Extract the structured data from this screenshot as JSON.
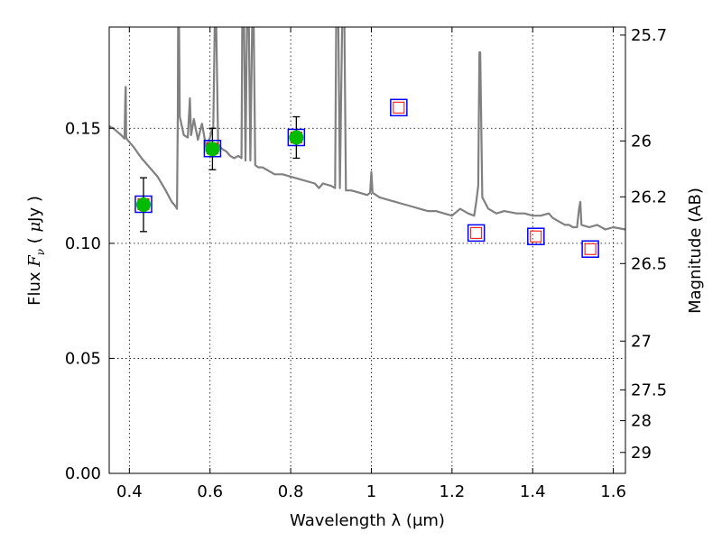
{
  "chart_data": {
    "type": "scatter",
    "xlabel": "Wavelength  λ (μm)",
    "ylabel_prefix": "Flux  ",
    "ylabel_fnu_main": "F",
    "ylabel_fnu_sub": "ν",
    "ylabel_unit_open": "  ( ",
    "ylabel_mu": "μ",
    "ylabel_unit_close": "Jy )",
    "y2label": "Magnitude (AB)",
    "xlim": [
      0.35,
      1.63
    ],
    "ylim": [
      0.0,
      0.194
    ],
    "grid": true,
    "x_ticks": [
      {
        "value": 0.4,
        "label": "0.4"
      },
      {
        "value": 0.6,
        "label": "0.6"
      },
      {
        "value": 0.8,
        "label": "0.8"
      },
      {
        "value": 1.0,
        "label": "1"
      },
      {
        "value": 1.2,
        "label": "1.2"
      },
      {
        "value": 1.4,
        "label": "1.4"
      },
      {
        "value": 1.6,
        "label": "1.6"
      }
    ],
    "y_ticks": [
      {
        "value": 0.0,
        "label": "0.00"
      },
      {
        "value": 0.05,
        "label": "0.05"
      },
      {
        "value": 0.1,
        "label": "0.10"
      },
      {
        "value": 0.15,
        "label": "0.15"
      }
    ],
    "y2_ticks": [
      {
        "flux": 0.1905,
        "label": "25.7"
      },
      {
        "flux": 0.1445,
        "label": "26"
      },
      {
        "flux": 0.1202,
        "label": "26.2"
      },
      {
        "flux": 0.0912,
        "label": "26.5"
      },
      {
        "flux": 0.0575,
        "label": "27"
      },
      {
        "flux": 0.0363,
        "label": "27.5"
      },
      {
        "flux": 0.0229,
        "label": "28"
      },
      {
        "flux": 0.0091,
        "label": "29"
      }
    ],
    "series": [
      {
        "kind": "model_spectrum",
        "color": "#808080",
        "points": [
          [
            0.35,
            0.1509
          ],
          [
            0.36,
            0.15
          ],
          [
            0.37,
            0.1485
          ],
          [
            0.38,
            0.147
          ],
          [
            0.388,
            0.1455
          ],
          [
            0.39,
            0.164
          ],
          [
            0.391,
            0.168
          ],
          [
            0.392,
            0.146
          ],
          [
            0.395,
            0.145
          ],
          [
            0.41,
            0.142
          ],
          [
            0.43,
            0.137
          ],
          [
            0.45,
            0.133
          ],
          [
            0.47,
            0.129
          ],
          [
            0.49,
            0.123
          ],
          [
            0.505,
            0.118
          ],
          [
            0.515,
            0.116
          ],
          [
            0.518,
            0.115
          ],
          [
            0.52,
            0.155
          ],
          [
            0.521,
            0.2
          ],
          [
            0.523,
            0.2
          ],
          [
            0.525,
            0.155
          ],
          [
            0.535,
            0.147
          ],
          [
            0.545,
            0.146
          ],
          [
            0.55,
            0.163
          ],
          [
            0.553,
            0.147
          ],
          [
            0.56,
            0.154
          ],
          [
            0.57,
            0.145
          ],
          [
            0.58,
            0.152
          ],
          [
            0.59,
            0.142
          ],
          [
            0.6,
            0.146
          ],
          [
            0.605,
            0.15
          ],
          [
            0.608,
            0.15
          ],
          [
            0.612,
            0.2
          ],
          [
            0.615,
            0.2
          ],
          [
            0.62,
            0.143
          ],
          [
            0.63,
            0.141
          ],
          [
            0.64,
            0.14
          ],
          [
            0.65,
            0.138
          ],
          [
            0.66,
            0.137
          ],
          [
            0.67,
            0.138
          ],
          [
            0.678,
            0.137
          ],
          [
            0.68,
            0.2
          ],
          [
            0.684,
            0.2
          ],
          [
            0.688,
            0.136
          ],
          [
            0.692,
            0.2
          ],
          [
            0.696,
            0.2
          ],
          [
            0.7,
            0.136
          ],
          [
            0.705,
            0.2
          ],
          [
            0.708,
            0.2
          ],
          [
            0.712,
            0.134
          ],
          [
            0.72,
            0.133
          ],
          [
            0.73,
            0.133
          ],
          [
            0.74,
            0.132
          ],
          [
            0.75,
            0.131
          ],
          [
            0.76,
            0.13
          ],
          [
            0.78,
            0.13
          ],
          [
            0.8,
            0.129
          ],
          [
            0.82,
            0.128
          ],
          [
            0.84,
            0.127
          ],
          [
            0.86,
            0.126
          ],
          [
            0.87,
            0.124
          ],
          [
            0.88,
            0.126
          ],
          [
            0.9,
            0.125
          ],
          [
            0.91,
            0.124
          ],
          [
            0.913,
            0.2
          ],
          [
            0.918,
            0.2
          ],
          [
            0.922,
            0.124
          ],
          [
            0.928,
            0.2
          ],
          [
            0.933,
            0.2
          ],
          [
            0.937,
            0.123
          ],
          [
            0.95,
            0.123
          ],
          [
            0.97,
            0.122
          ],
          [
            0.99,
            0.121
          ],
          [
            0.997,
            0.122
          ],
          [
            1.0,
            0.131
          ],
          [
            1.003,
            0.122
          ],
          [
            1.02,
            0.12
          ],
          [
            1.04,
            0.119
          ],
          [
            1.06,
            0.118
          ],
          [
            1.08,
            0.117
          ],
          [
            1.1,
            0.116
          ],
          [
            1.12,
            0.115
          ],
          [
            1.14,
            0.114
          ],
          [
            1.16,
            0.114
          ],
          [
            1.18,
            0.113
          ],
          [
            1.2,
            0.112
          ],
          [
            1.22,
            0.115
          ],
          [
            1.24,
            0.113
          ],
          [
            1.255,
            0.112
          ],
          [
            1.26,
            0.118
          ],
          [
            1.265,
            0.125
          ],
          [
            1.268,
            0.183
          ],
          [
            1.27,
            0.183
          ],
          [
            1.275,
            0.12
          ],
          [
            1.29,
            0.115
          ],
          [
            1.31,
            0.113
          ],
          [
            1.33,
            0.114
          ],
          [
            1.36,
            0.113
          ],
          [
            1.38,
            0.113
          ],
          [
            1.4,
            0.112
          ],
          [
            1.42,
            0.112
          ],
          [
            1.44,
            0.113
          ],
          [
            1.45,
            0.111
          ],
          [
            1.46,
            0.11
          ],
          [
            1.48,
            0.108
          ],
          [
            1.49,
            0.108
          ],
          [
            1.5,
            0.107
          ],
          [
            1.51,
            0.107
          ],
          [
            1.515,
            0.115
          ],
          [
            1.518,
            0.118
          ],
          [
            1.521,
            0.108
          ],
          [
            1.54,
            0.107
          ],
          [
            1.56,
            0.108
          ],
          [
            1.58,
            0.106
          ],
          [
            1.6,
            0.107
          ],
          [
            1.63,
            0.106
          ]
        ]
      },
      {
        "kind": "observed_photometry",
        "color": "#00bb00",
        "points": [
          {
            "x": 0.435,
            "y": 0.1168,
            "yerr": 0.0117
          },
          {
            "x": 0.606,
            "y": 0.141,
            "yerr": 0.009
          },
          {
            "x": 0.814,
            "y": 0.146,
            "yerr": 0.009
          }
        ]
      },
      {
        "kind": "model_photometry",
        "color_outer": "#0000ff",
        "color_inner": "#ff0000",
        "points": [
          {
            "x": 0.435,
            "y": 0.117
          },
          {
            "x": 0.606,
            "y": 0.1412
          },
          {
            "x": 0.814,
            "y": 0.146
          },
          {
            "x": 1.068,
            "y": 0.159
          },
          {
            "x": 1.26,
            "y": 0.1045
          },
          {
            "x": 1.408,
            "y": 0.103
          },
          {
            "x": 1.543,
            "y": 0.0975
          }
        ]
      }
    ]
  }
}
